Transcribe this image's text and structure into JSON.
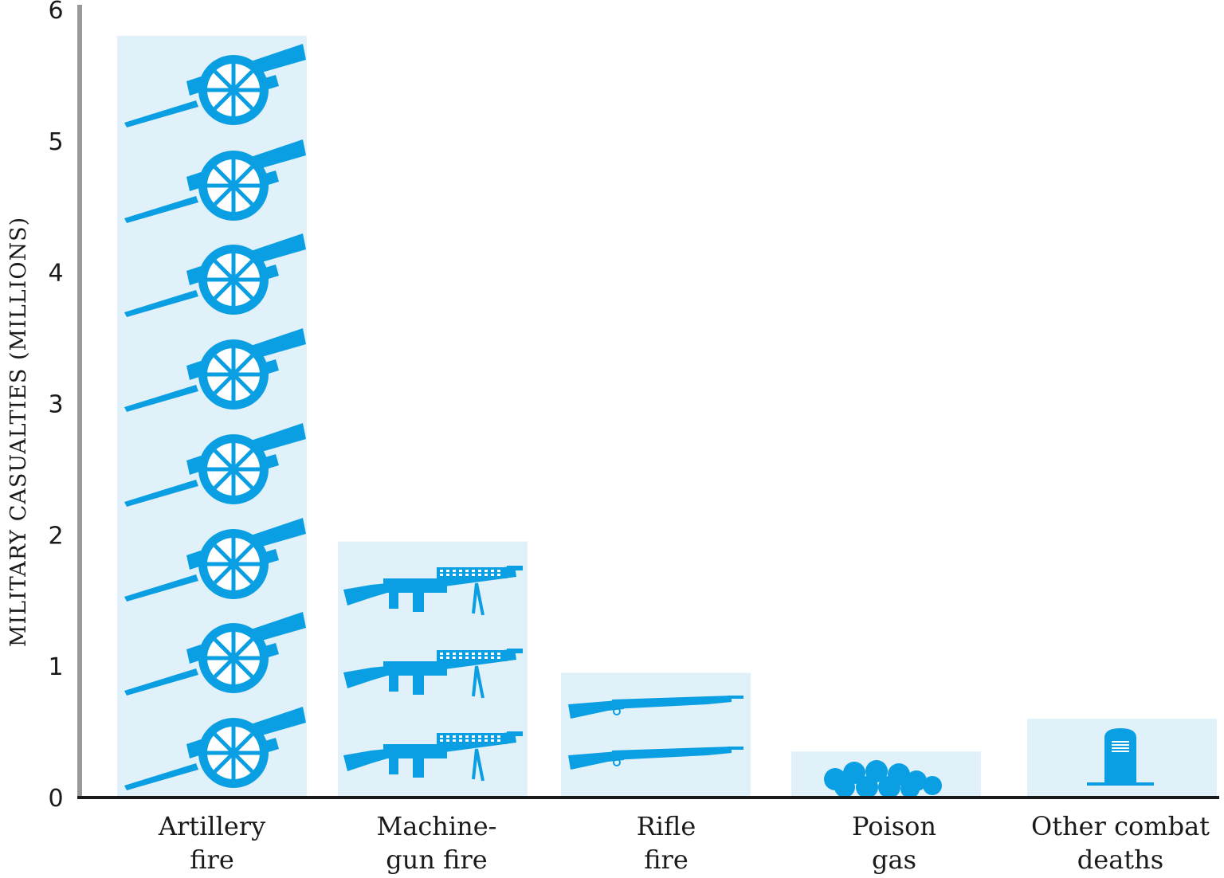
{
  "chart_data": {
    "type": "bar",
    "title": "",
    "xlabel": "",
    "ylabel": "MILITARY CASUALTIES (MILLIONS)",
    "ylim": [
      0,
      6
    ],
    "yticks": [
      0,
      1,
      2,
      3,
      4,
      5,
      6
    ],
    "grid": false,
    "legend": "none",
    "categories": [
      [
        "Artillery",
        "fire"
      ],
      [
        "Machine-",
        "gun fire"
      ],
      [
        "Rifle",
        "fire"
      ],
      [
        "Poison",
        "gas"
      ],
      [
        "Other combat",
        "deaths"
      ]
    ],
    "values": [
      5.8,
      1.95,
      0.95,
      0.35,
      0.6
    ],
    "icons": [
      "cannon-icon",
      "machine-gun-icon",
      "rifle-icon",
      "gas-cloud-icon",
      "tombstone-icon"
    ],
    "icon_counts": [
      8,
      3,
      2,
      1,
      1
    ]
  },
  "colors": {
    "bar_fill": "#e1f1fa",
    "icon": "#0a9ee2",
    "axis_y": "#999999",
    "axis_x": "#1a1a1a",
    "text": "#1a1a1a"
  }
}
